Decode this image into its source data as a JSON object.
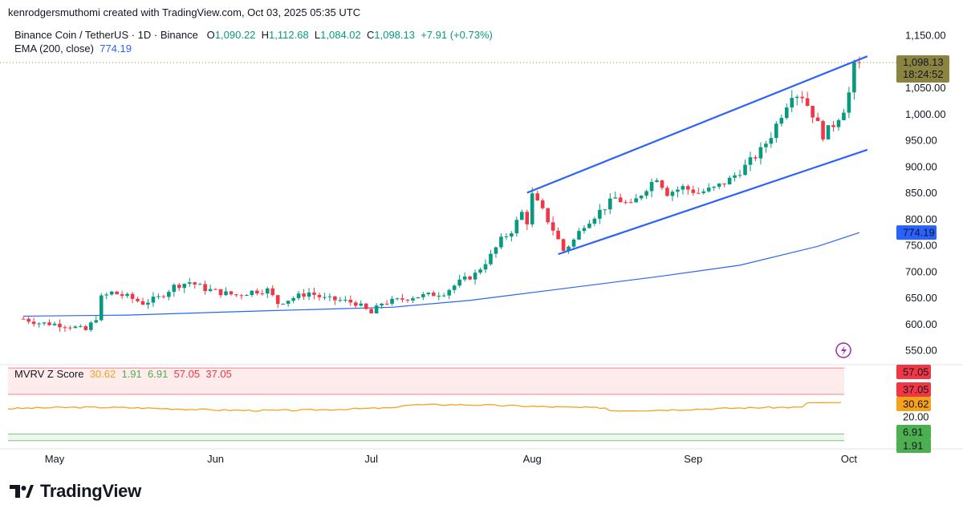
{
  "attribution": "kenrodgersmuthomi created with TradingView.com, Oct 03, 2025 05:35 UTC",
  "symbol_line": {
    "title": "Binance Coin / TetherUS · 1D · Binance",
    "o_label": "O",
    "o_value": "1,090.22",
    "h_label": "H",
    "h_value": "1,112.68",
    "l_label": "L",
    "l_value": "1,084.02",
    "c_label": "C",
    "c_value": "1,098.13",
    "change": "+7.91 (+0.73%)"
  },
  "ema_line": {
    "label": "EMA (200, close)",
    "value": "774.19"
  },
  "indicator_legend": {
    "label": "MVRV Z Score",
    "values": [
      "30.62",
      "1.91",
      "6.91",
      "57.05",
      "37.05"
    ]
  },
  "footer": {
    "brand": "TradingView"
  },
  "colors": {
    "up": "#089981",
    "down": "#f23645",
    "ema": "#2962ff",
    "channel": "#2962ff",
    "mvrv_line": "#f7a21b",
    "upper_band": "#f23645",
    "lower_band": "#4caf50",
    "last_price_tag": "#8a8440"
  },
  "chart_data": [
    {
      "type": "candlestick",
      "title": "Binance Coin / TetherUS · 1D · Binance",
      "x_months": [
        "May",
        "Jun",
        "Jul",
        "Aug",
        "Sep",
        "Oct"
      ],
      "y_ticks": [
        "1,150.00",
        "1,100.00",
        "1,050.00",
        "1,000.00",
        "950.00",
        "900.00",
        "850.00",
        "800.00",
        "750.00",
        "700.00",
        "650.00",
        "600.00",
        "550.00"
      ],
      "ylim": [
        530,
        1160
      ],
      "last_price": {
        "value": "1,098.13",
        "countdown": "18:24:52"
      },
      "ema_tag": "774.19",
      "close_path": [
        [
          "Apr 25",
          610
        ],
        [
          "Apr 28",
          602
        ],
        [
          "May 01",
          600
        ],
        [
          "May 04",
          596
        ],
        [
          "May 07",
          588
        ],
        [
          "May 09",
          612
        ],
        [
          "May 10",
          650
        ],
        [
          "May 12",
          660
        ],
        [
          "May 15",
          652
        ],
        [
          "May 18",
          640
        ],
        [
          "May 21",
          650
        ],
        [
          "May 24",
          672
        ],
        [
          "May 27",
          680
        ],
        [
          "May 30",
          667
        ],
        [
          "Jun 02",
          660
        ],
        [
          "Jun 05",
          655
        ],
        [
          "Jun 08",
          662
        ],
        [
          "Jun 11",
          665
        ],
        [
          "Jun 13",
          640
        ],
        [
          "Jun 16",
          650
        ],
        [
          "Jun 19",
          660
        ],
        [
          "Jun 22",
          648
        ],
        [
          "Jun 25",
          645
        ],
        [
          "Jun 28",
          640
        ],
        [
          "Jul 01",
          620
        ],
        [
          "Jul 03",
          640
        ],
        [
          "Jul 06",
          645
        ],
        [
          "Jul 09",
          652
        ],
        [
          "Jul 12",
          655
        ],
        [
          "Jul 15",
          660
        ],
        [
          "Jul 18",
          680
        ],
        [
          "Jul 21",
          695
        ],
        [
          "Jul 24",
          730
        ],
        [
          "Jul 26",
          760
        ],
        [
          "Jul 28",
          778
        ],
        [
          "Jul 30",
          812
        ],
        [
          "Jul 31",
          795
        ],
        [
          "Aug 01",
          845
        ],
        [
          "Aug 03",
          815
        ],
        [
          "Aug 05",
          780
        ],
        [
          "Aug 07",
          740
        ],
        [
          "Aug 09",
          760
        ],
        [
          "Aug 11",
          790
        ],
        [
          "Aug 14",
          815
        ],
        [
          "Aug 17",
          840
        ],
        [
          "Aug 20",
          825
        ],
        [
          "Aug 23",
          860
        ],
        [
          "Aug 25",
          880
        ],
        [
          "Aug 27",
          850
        ],
        [
          "Aug 30",
          860
        ],
        [
          "Sep 02",
          850
        ],
        [
          "Sep 05",
          858
        ],
        [
          "Sep 08",
          875
        ],
        [
          "Sep 11",
          900
        ],
        [
          "Sep 14",
          930
        ],
        [
          "Sep 16",
          960
        ],
        [
          "Sep 18",
          1000
        ],
        [
          "Sep 20",
          1040
        ],
        [
          "Sep 22",
          1035
        ],
        [
          "Sep 24",
          1000
        ],
        [
          "Sep 26",
          960
        ],
        [
          "Sep 28",
          980
        ],
        [
          "Sep 30",
          1010
        ],
        [
          "Oct 01",
          1040
        ],
        [
          "Oct 02",
          1090
        ],
        [
          "Oct 03",
          1098.13
        ]
      ],
      "ema_200": [
        [
          "Apr 25",
          615
        ],
        [
          "May 15",
          617
        ],
        [
          "Jun 10",
          625
        ],
        [
          "Jul 05",
          632
        ],
        [
          "Jul 20",
          645
        ],
        [
          "Aug 05",
          665
        ],
        [
          "Aug 25",
          690
        ],
        [
          "Sep 10",
          712
        ],
        [
          "Sep 25",
          748
        ],
        [
          "Oct 03",
          774.19
        ]
      ],
      "channel_upper": [
        [
          "Jul 31",
          850
        ],
        [
          "Oct 03",
          1110
        ]
      ],
      "channel_lower": [
        [
          "Aug 06",
          733
        ],
        [
          "Oct 03",
          932
        ]
      ]
    },
    {
      "type": "line",
      "title": "MVRV Z Score",
      "series": [
        {
          "name": "MVRV Z Score",
          "last": 30.62
        }
      ],
      "bands": {
        "upper": [
          37.05,
          57.05
        ],
        "lower": [
          1.91,
          6.91
        ]
      },
      "y_ticks": [
        "20.00"
      ],
      "tags": [
        "57.05",
        "37.05",
        "30.62",
        "20.00",
        "6.91",
        "1.91"
      ]
    }
  ]
}
